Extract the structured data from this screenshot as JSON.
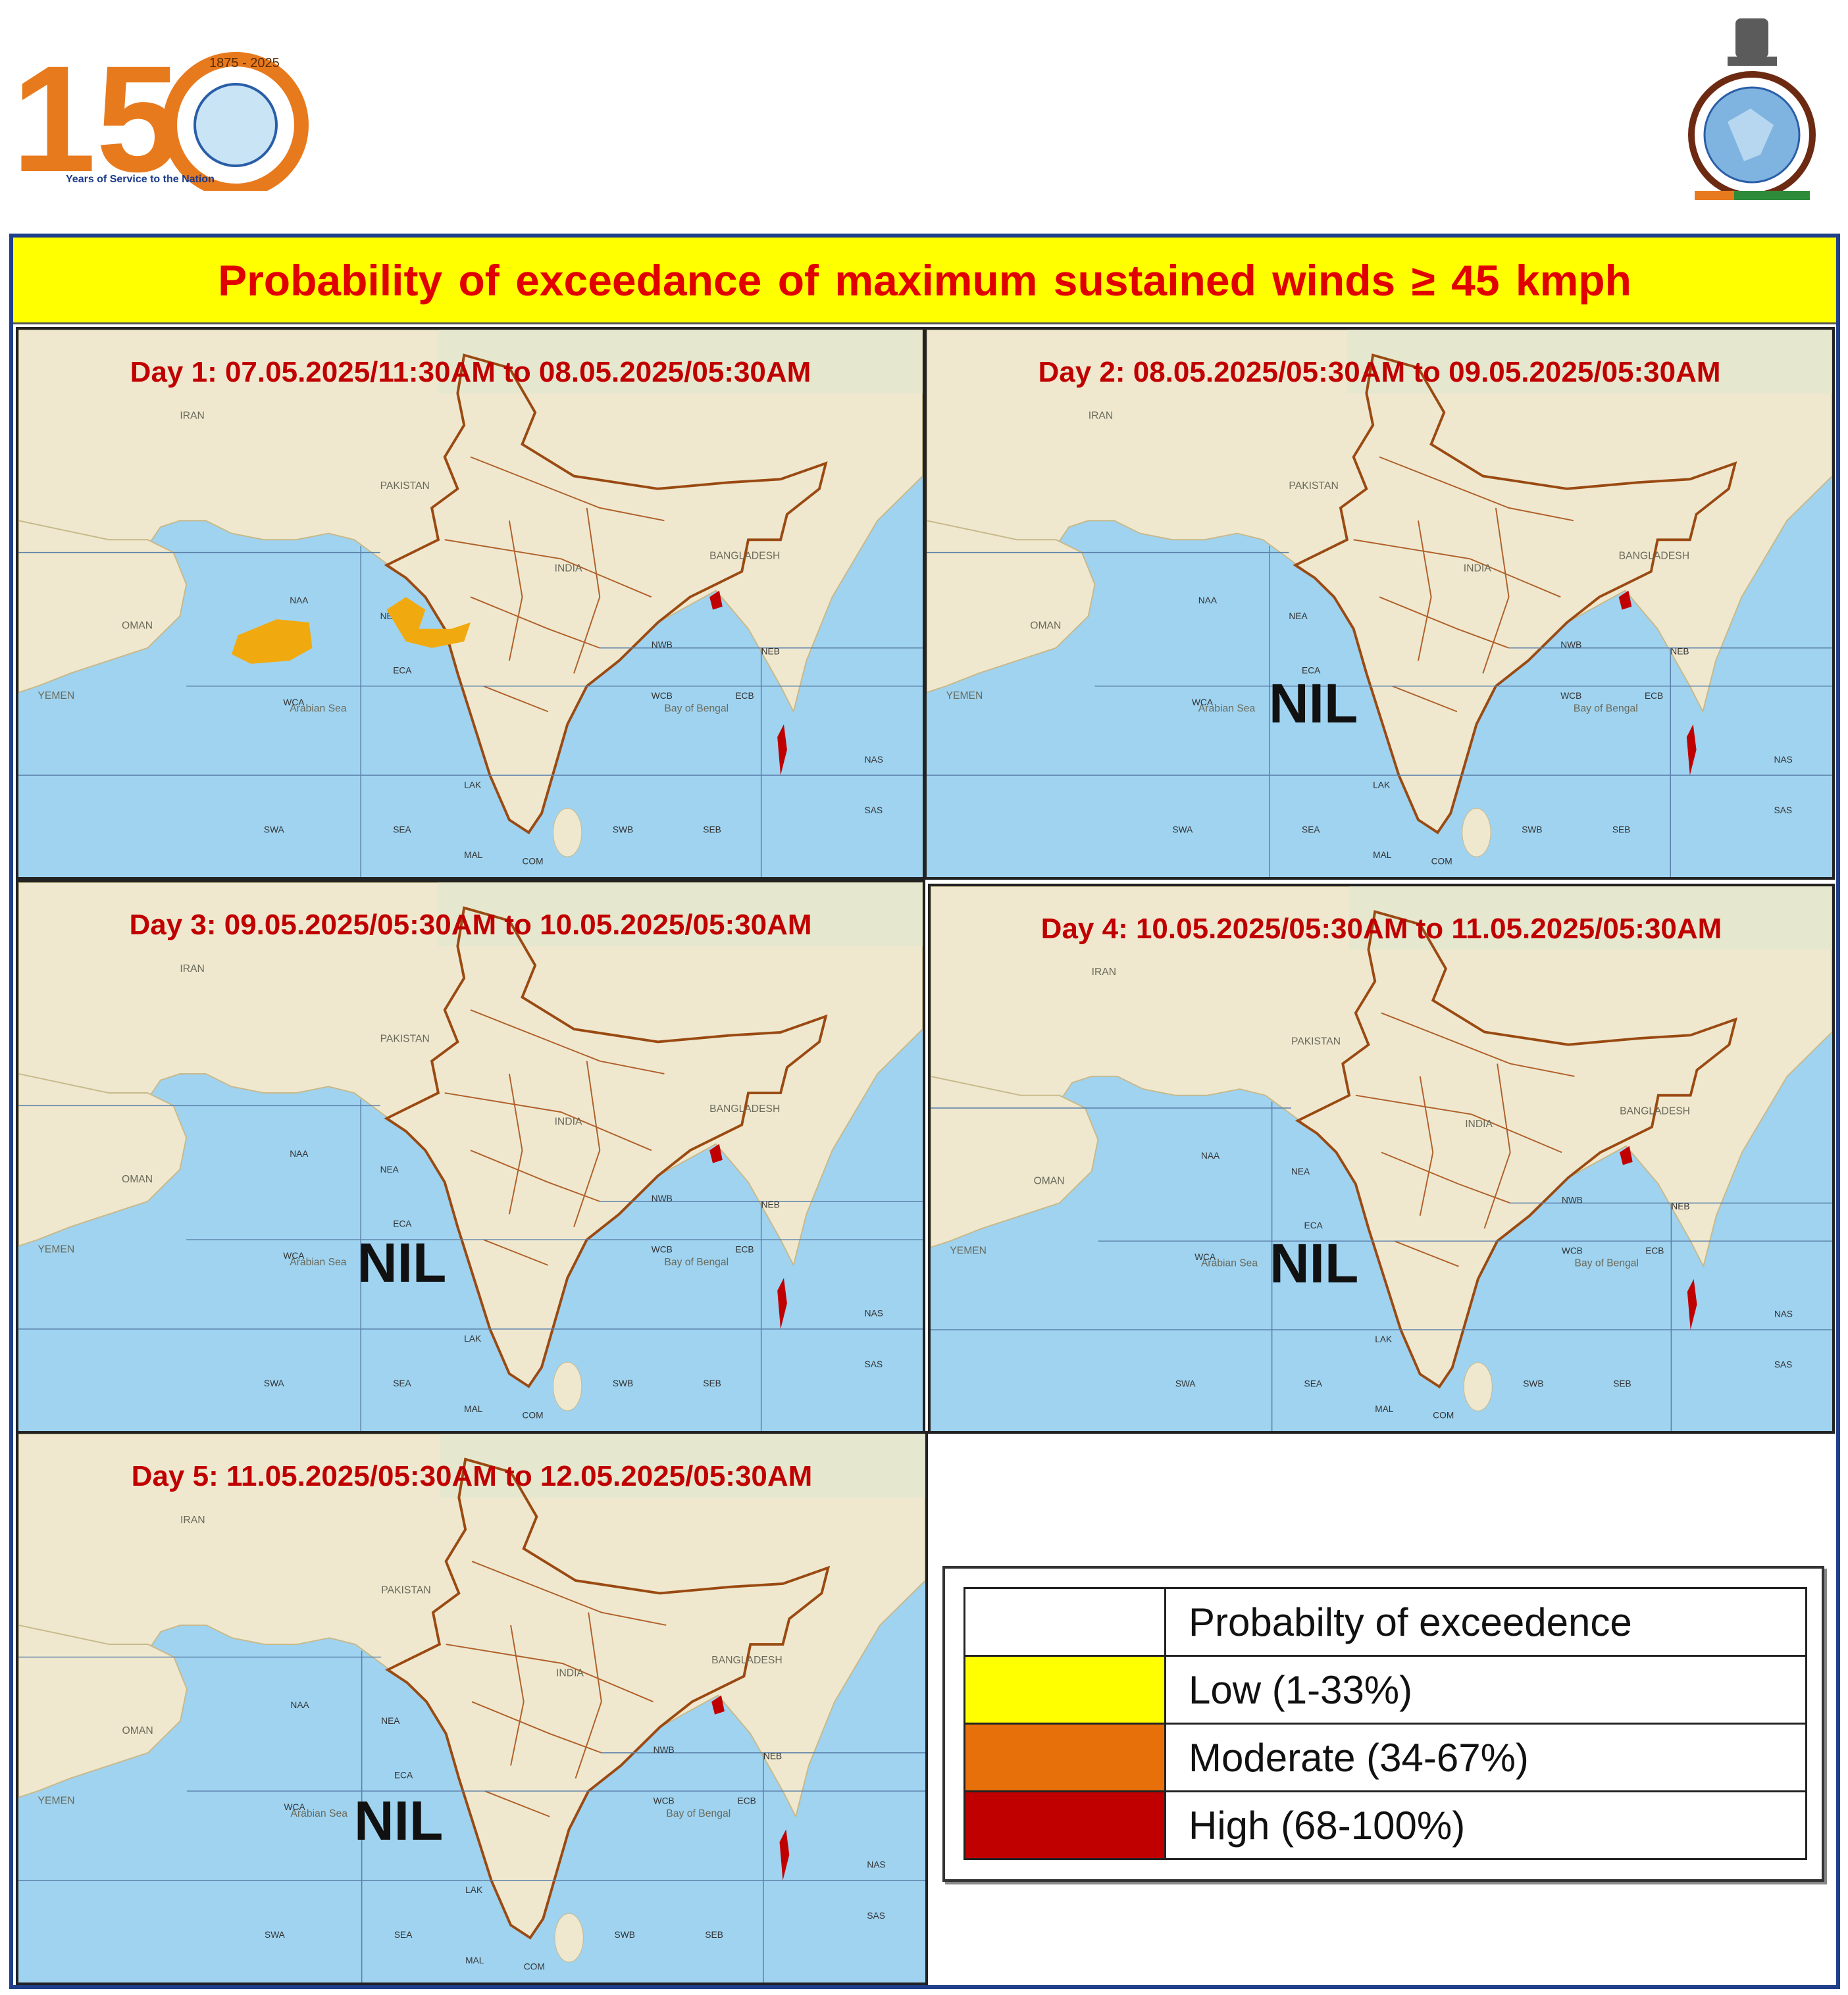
{
  "header": {
    "logo_150_text": "150",
    "logo_150_subtext": "Years of Service to the Nation",
    "logo_seal_years": "1875 - 2025"
  },
  "title": "Probability  of exceedance of maximum  sustained  winds ≥ 45 kmph",
  "colors": {
    "low": "#ffff00",
    "moderate": "#e8700a",
    "high": "#c00000",
    "title_bg": "#ffff00",
    "title_text": "#e00000",
    "sea": "#9fd3f0",
    "land": "#efe8cf",
    "day1_zone": "#f0aa10"
  },
  "panels": [
    {
      "label": "Day 1: 07.05.2025/11:30AM to 08.05.2025/05:30AM",
      "status": ""
    },
    {
      "label": "Day 2: 08.05.2025/05:30AM to 09.05.2025/05:30AM",
      "status": "NIL"
    },
    {
      "label": "Day 3:  09.05.2025/05:30AM to 10.05.2025/05:30AM",
      "status": "NIL"
    },
    {
      "label": "Day 4: 10.05.2025/05:30AM to 11.05.2025/05:30AM",
      "status": "NIL"
    },
    {
      "label": "Day 5: 11.05.2025/05:30AM to 12.05.2025/05:30AM",
      "status": "NIL"
    }
  ],
  "map_labels": {
    "iran": "IRAN",
    "pakistan": "PAKISTAN",
    "india": "INDIA",
    "oman": "OMAN",
    "yemen": "YEMEN",
    "bangladesh": "BANGLADESH",
    "arabian_sea": "Arabian Sea",
    "bay_of_bengal": "Bay of Bengal",
    "zones": [
      "NAA",
      "NEA",
      "ECA",
      "WCA",
      "SWA",
      "SEA",
      "LAK",
      "MAL",
      "COM",
      "SWB",
      "SEB",
      "NWB",
      "NEB",
      "WCB",
      "ECB",
      "NAS",
      "SAS"
    ]
  },
  "legend": {
    "header": "Probabilty of exceedence",
    "items": [
      {
        "label": "Low (1-33%)",
        "color": "#ffff00"
      },
      {
        "label": "Moderate (34-67%)",
        "color": "#e8700a"
      },
      {
        "label": "High (68-100%)",
        "color": "#c00000"
      }
    ]
  }
}
